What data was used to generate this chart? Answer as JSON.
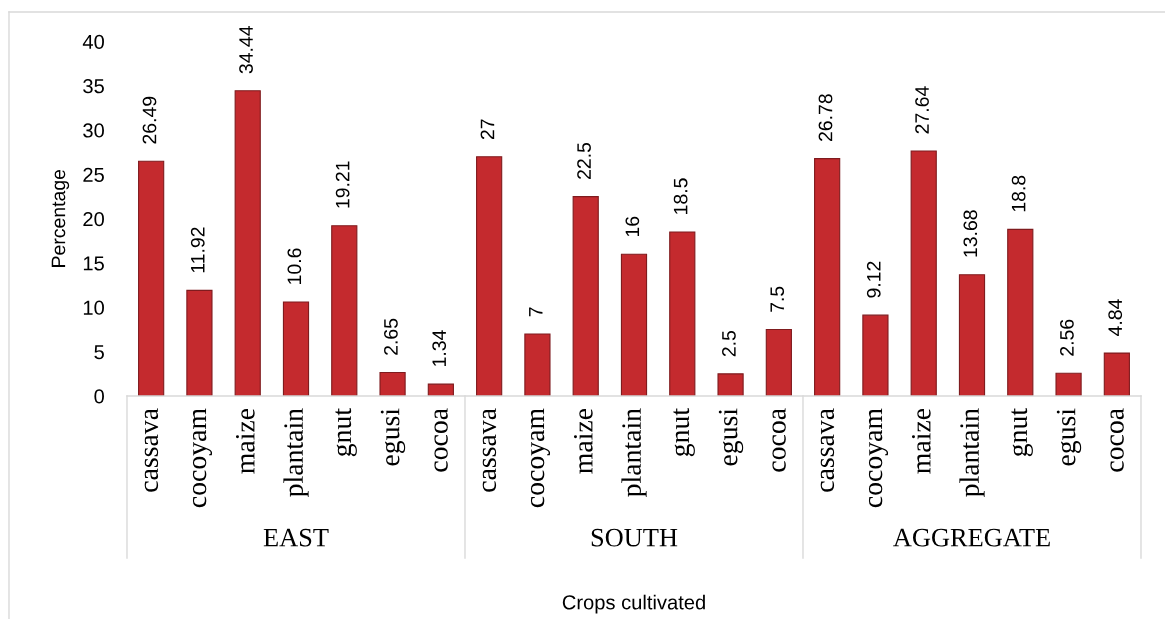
{
  "chart_data": {
    "type": "bar",
    "categories": [
      "cassava",
      "cocoyam",
      "maize",
      "plantain",
      "gnut",
      "egusi",
      "cocoa",
      "cassava",
      "cocoyam",
      "maize",
      "plantain",
      "gnut",
      "egusi",
      "cocoa",
      "cassava",
      "cocoyam",
      "maize",
      "plantain",
      "gnut",
      "egusi",
      "cocoa"
    ],
    "values": [
      26.49,
      11.92,
      34.44,
      10.6,
      19.21,
      2.65,
      1.34,
      27,
      7,
      22.5,
      16,
      18.5,
      2.5,
      7.5,
      26.78,
      9.12,
      27.64,
      13.68,
      18.8,
      2.56,
      4.84
    ],
    "color": "#c42a2e",
    "ylabel": "Percentage",
    "xlabel": "Crops cultivated",
    "annotations": [
      "EAST",
      "SOUTH",
      "AGGREGATE"
    ],
    "ylim": [
      0,
      40
    ],
    "yticks": [
      0,
      5,
      10,
      15,
      20,
      25,
      30,
      35,
      40
    ],
    "data_labels": true,
    "grid": false
  }
}
